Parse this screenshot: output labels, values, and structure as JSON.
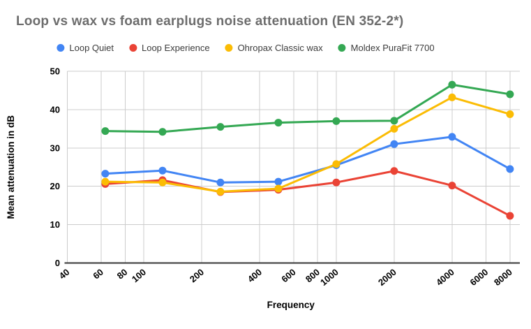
{
  "header": {
    "title": "Loop vs wax vs foam earplugs noise attenuation (EN 352-2*)"
  },
  "chart_data": {
    "type": "line",
    "title": "Loop vs wax vs foam earplugs noise attenuation (EN 352-2*)",
    "xlabel": "Frequency",
    "ylabel": "Mean attenuation in dB",
    "x_scale": "log",
    "x": [
      63,
      125,
      250,
      500,
      1000,
      2000,
      4000,
      8000
    ],
    "series": [
      {
        "name": "Loop Quiet",
        "color": "#4285F4",
        "values": [
          23.3,
          24.1,
          21.0,
          21.2,
          25.5,
          31.0,
          32.9,
          24.5
        ]
      },
      {
        "name": "Loop Experience",
        "color": "#EA4335",
        "values": [
          20.6,
          21.6,
          18.5,
          19.1,
          21.0,
          24.0,
          20.2,
          12.3
        ]
      },
      {
        "name": "Ohropax Classic wax",
        "color": "#FBBC04",
        "values": [
          21.2,
          21.0,
          18.6,
          19.4,
          25.8,
          35.0,
          43.2,
          38.8
        ]
      },
      {
        "name": "Moldex PuraFit 7700",
        "color": "#34A853",
        "values": [
          34.4,
          34.2,
          35.5,
          36.6,
          37.0,
          37.1,
          46.5,
          44.0
        ]
      }
    ],
    "x_ticks": [
      40,
      60,
      80,
      100,
      200,
      400,
      600,
      800,
      1000,
      2000,
      4000,
      6000,
      8000
    ],
    "y_ticks": [
      0,
      10,
      20,
      30,
      40,
      50
    ],
    "ylim": [
      0,
      50
    ],
    "xlim": [
      40,
      9000
    ],
    "grid": true,
    "legend_position": "top",
    "grid_color": "#cccccc",
    "baseline_color": "#333333",
    "tick_label_color": "#000000",
    "title_color": "#6d6d6d"
  }
}
